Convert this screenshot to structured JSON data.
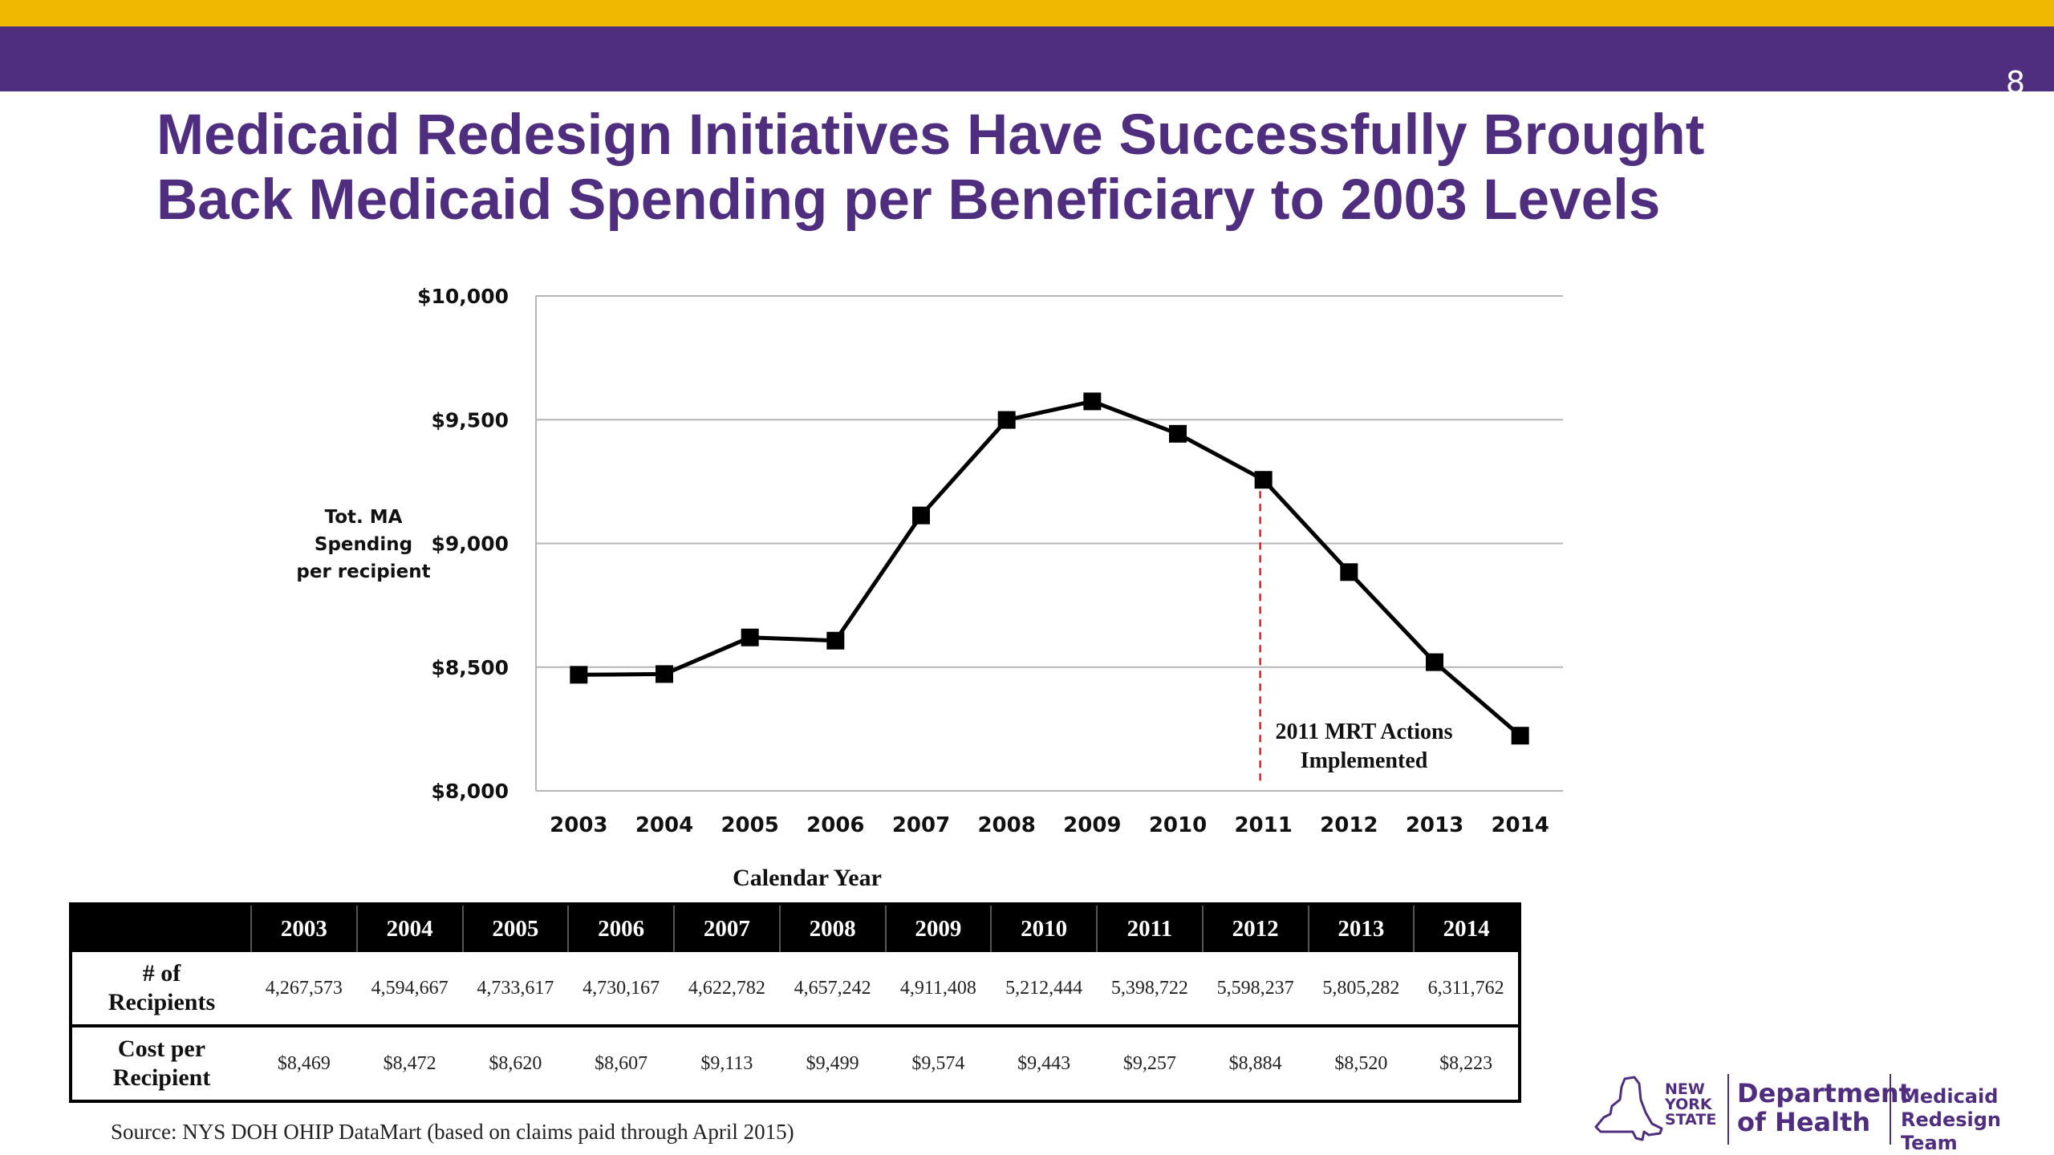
{
  "slide": {
    "number": "8",
    "title_line1": "Medicaid Redesign Initiatives Have Successfully Brought",
    "title_line2": "Back Medicaid Spending per Beneficiary to 2003 Levels",
    "source": "Source: NYS DOH OHIP DataMart (based on claims paid through April 2015)",
    "colors": {
      "gold": "#F0B800",
      "purple": "#4F2D7F",
      "marker": "#000000",
      "annotation_line": "#E02020"
    }
  },
  "chart_data": {
    "type": "line",
    "categories": [
      "2003",
      "2004",
      "2005",
      "2006",
      "2007",
      "2008",
      "2009",
      "2010",
      "2011",
      "2012",
      "2013",
      "2014"
    ],
    "values": [
      8469,
      8472,
      8620,
      8607,
      9113,
      9499,
      9574,
      9443,
      9257,
      8884,
      8520,
      8223
    ],
    "ylim": [
      8000,
      10000
    ],
    "yticks": [
      8000,
      8500,
      9000,
      9500,
      10000
    ],
    "ytick_labels": [
      "$8,000",
      "$8,500",
      "$9,000",
      "$9,500",
      "$10,000"
    ],
    "ylabel_lines": [
      "Tot. MA",
      "Spending",
      "per recipient"
    ],
    "xlabel": "Calendar Year",
    "grid": "horizontal",
    "marker": "square",
    "annotation": {
      "x": "2011",
      "lines": [
        "2011 MRT Actions",
        "Implemented"
      ]
    }
  },
  "table": {
    "headers": [
      "",
      "2003",
      "2004",
      "2005",
      "2006",
      "2007",
      "2008",
      "2009",
      "2010",
      "2011",
      "2012",
      "2013",
      "2014"
    ],
    "rows": [
      {
        "label_lines": [
          "# of",
          "Recipients"
        ],
        "values": [
          "4,267,573",
          "4,594,667",
          "4,733,617",
          "4,730,167",
          "4,622,782",
          "4,657,242",
          "4,911,408",
          "5,212,444",
          "5,398,722",
          "5,598,237",
          "5,805,282",
          "6,311,762"
        ]
      },
      {
        "label_lines": [
          "Cost per",
          "Recipient"
        ],
        "values": [
          "$8,469",
          "$8,472",
          "$8,620",
          "$8,607",
          "$9,113",
          "$9,499",
          "$9,574",
          "$9,443",
          "$9,257",
          "$8,884",
          "$8,520",
          "$8,223"
        ]
      }
    ]
  },
  "logo": {
    "ny_lines": [
      "NEW",
      "YORK",
      "STATE"
    ],
    "dept_lines": [
      "Department",
      "of Health"
    ],
    "mrt_lines": [
      "Medicaid",
      "Redesign Team"
    ]
  }
}
